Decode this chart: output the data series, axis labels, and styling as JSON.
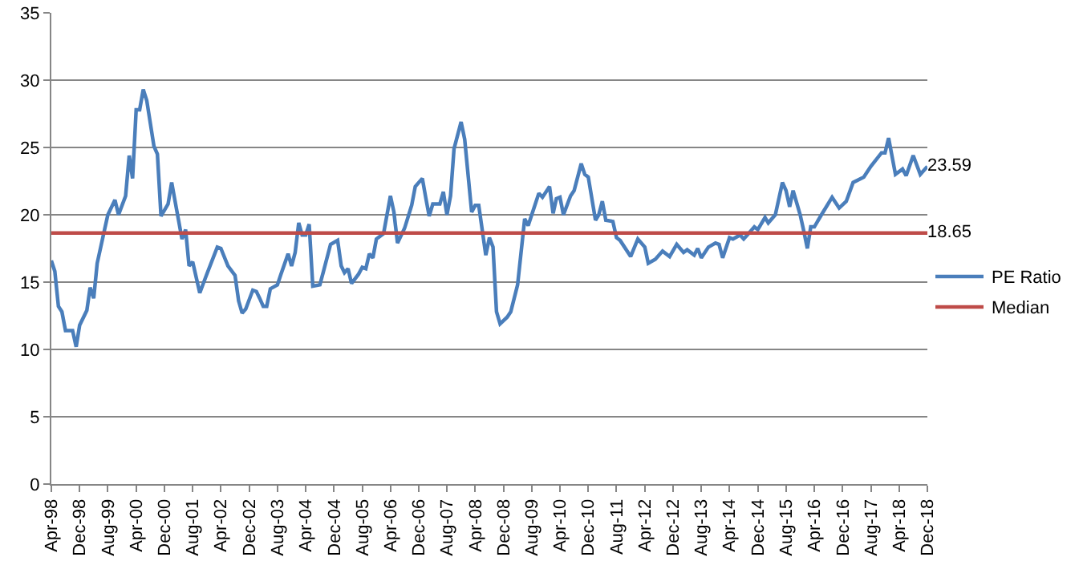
{
  "chart_data": {
    "type": "line",
    "xlim": [
      "1998-04",
      "2018-12"
    ],
    "ylim": [
      0,
      35
    ],
    "yticks": [
      0,
      5,
      10,
      15,
      20,
      25,
      30,
      35
    ],
    "xticks": [
      {
        "value": "1998-04",
        "label": "Apr-98"
      },
      {
        "value": "1998-12",
        "label": "Dec-98"
      },
      {
        "value": "1999-08",
        "label": "Aug-99"
      },
      {
        "value": "2000-04",
        "label": "Apr-00"
      },
      {
        "value": "2000-12",
        "label": "Dec-00"
      },
      {
        "value": "2001-08",
        "label": "Aug-01"
      },
      {
        "value": "2002-04",
        "label": "Apr-02"
      },
      {
        "value": "2002-12",
        "label": "Dec-02"
      },
      {
        "value": "2003-08",
        "label": "Aug-03"
      },
      {
        "value": "2004-04",
        "label": "Apr-04"
      },
      {
        "value": "2004-12",
        "label": "Dec-04"
      },
      {
        "value": "2005-08",
        "label": "Aug-05"
      },
      {
        "value": "2006-04",
        "label": "Apr-06"
      },
      {
        "value": "2006-12",
        "label": "Dec-06"
      },
      {
        "value": "2007-08",
        "label": "Aug-07"
      },
      {
        "value": "2008-04",
        "label": "Apr-08"
      },
      {
        "value": "2008-12",
        "label": "Dec-08"
      },
      {
        "value": "2009-08",
        "label": "Aug-09"
      },
      {
        "value": "2010-04",
        "label": "Apr-10"
      },
      {
        "value": "2010-12",
        "label": "Dec-10"
      },
      {
        "value": "2011-08",
        "label": "Aug-11"
      },
      {
        "value": "2012-04",
        "label": "Apr-12"
      },
      {
        "value": "2012-12",
        "label": "Dec-12"
      },
      {
        "value": "2013-08",
        "label": "Aug-13"
      },
      {
        "value": "2014-04",
        "label": "Apr-14"
      },
      {
        "value": "2014-12",
        "label": "Dec-14"
      },
      {
        "value": "2015-08",
        "label": "Aug-15"
      },
      {
        "value": "2016-04",
        "label": "Apr-16"
      },
      {
        "value": "2016-12",
        "label": "Dec-16"
      },
      {
        "value": "2017-08",
        "label": "Aug-17"
      },
      {
        "value": "2018-04",
        "label": "Apr-18"
      },
      {
        "value": "2018-12",
        "label": "Dec-18"
      }
    ],
    "grid": "y",
    "legend": "right",
    "marker": "none",
    "line_style": "solid",
    "series": [
      {
        "name": "PE Ratio",
        "color": "#4a7ebb",
        "x": [
          "1998-04",
          "1998-05",
          "1998-06",
          "1998-07",
          "1998-08",
          "1998-10",
          "1998-11",
          "1998-12",
          "1999-02",
          "1999-03",
          "1999-04",
          "1999-05",
          "1999-07",
          "1999-08",
          "1999-10",
          "1999-11",
          "2000-01",
          "2000-02",
          "2000-03",
          "2000-04",
          "2000-05",
          "2000-06",
          "2000-07",
          "2000-09",
          "2000-10",
          "2000-11",
          "2001-01",
          "2001-02",
          "2001-04",
          "2001-05",
          "2001-06",
          "2001-07",
          "2001-08",
          "2001-10",
          "2001-12",
          "2002-03",
          "2002-04",
          "2002-06",
          "2002-08",
          "2002-09",
          "2002-10",
          "2002-11",
          "2003-01",
          "2003-02",
          "2003-03",
          "2003-04",
          "2003-05",
          "2003-06",
          "2003-08",
          "2003-09",
          "2003-11",
          "2003-12",
          "2004-01",
          "2004-02",
          "2004-03",
          "2004-04",
          "2004-05",
          "2004-06",
          "2004-08",
          "2004-09",
          "2004-11",
          "2005-01",
          "2005-02",
          "2005-03",
          "2005-04",
          "2005-05",
          "2005-07",
          "2005-08",
          "2005-09",
          "2005-10",
          "2005-11",
          "2005-12",
          "2006-02",
          "2006-04",
          "2006-05",
          "2006-06",
          "2006-08",
          "2006-10",
          "2006-11",
          "2007-01",
          "2007-02",
          "2007-03",
          "2007-04",
          "2007-06",
          "2007-07",
          "2007-08",
          "2007-09",
          "2007-10",
          "2007-12",
          "2008-01",
          "2008-03",
          "2008-04",
          "2008-05",
          "2008-07",
          "2008-08",
          "2008-09",
          "2008-10",
          "2008-11",
          "2009-01",
          "2009-02",
          "2009-04",
          "2009-06",
          "2009-07",
          "2009-10",
          "2009-11",
          "2010-01",
          "2010-02",
          "2010-03",
          "2010-04",
          "2010-05",
          "2010-07",
          "2010-08",
          "2010-10",
          "2010-11",
          "2010-12",
          "2011-02",
          "2011-03",
          "2011-04",
          "2011-05",
          "2011-07",
          "2011-08",
          "2011-09",
          "2011-12",
          "2012-02",
          "2012-04",
          "2012-05",
          "2012-07",
          "2012-09",
          "2012-11",
          "2013-01",
          "2013-03",
          "2013-04",
          "2013-06",
          "2013-07",
          "2013-08",
          "2013-10",
          "2013-12",
          "2014-01",
          "2014-02",
          "2014-04",
          "2014-05",
          "2014-07",
          "2014-08",
          "2014-09",
          "2014-11",
          "2014-12",
          "2015-02",
          "2015-03",
          "2015-05",
          "2015-07",
          "2015-08",
          "2015-09",
          "2015-10",
          "2015-12",
          "2016-01",
          "2016-02",
          "2016-03",
          "2016-04",
          "2016-06",
          "2016-09",
          "2016-11",
          "2017-01",
          "2017-03",
          "2017-06",
          "2017-08",
          "2017-11",
          "2017-12",
          "2018-01",
          "2018-03",
          "2018-05",
          "2018-06",
          "2018-08",
          "2018-10",
          "2018-12"
        ],
        "values": [
          16.6,
          15.8,
          13.2,
          12.8,
          11.4,
          11.4,
          10.2,
          11.8,
          12.9,
          14.6,
          13.8,
          16.4,
          18.8,
          20.0,
          21.1,
          20.0,
          21.4,
          24.4,
          22.7,
          27.8,
          27.8,
          29.3,
          28.5,
          25.1,
          24.5,
          19.9,
          20.8,
          22.4,
          19.6,
          18.2,
          18.9,
          16.2,
          16.5,
          14.2,
          15.6,
          17.6,
          17.5,
          16.2,
          15.5,
          13.6,
          12.7,
          13.0,
          14.4,
          14.3,
          13.8,
          13.2,
          13.2,
          14.5,
          14.8,
          15.6,
          17.1,
          16.2,
          17.2,
          19.4,
          18.5,
          18.5,
          19.3,
          14.7,
          14.8,
          15.8,
          17.8,
          18.1,
          16.2,
          15.7,
          16.0,
          14.9,
          15.6,
          16.1,
          16.0,
          17.1,
          16.8,
          18.2,
          18.6,
          21.4,
          20.2,
          17.9,
          19.0,
          20.7,
          22.1,
          22.7,
          21.2,
          19.9,
          20.8,
          20.8,
          21.7,
          20.0,
          21.4,
          24.9,
          26.9,
          25.6,
          20.2,
          20.7,
          20.7,
          17.0,
          18.3,
          17.6,
          12.8,
          11.9,
          12.4,
          12.8,
          14.8,
          19.7,
          19.2,
          21.6,
          21.3,
          22.1,
          20.1,
          21.2,
          21.3,
          20.0,
          21.4,
          21.8,
          23.8,
          23.0,
          22.8,
          19.6,
          20.0,
          21.0,
          19.6,
          19.5,
          18.3,
          18.1,
          16.9,
          18.2,
          17.6,
          16.4,
          16.7,
          17.3,
          16.9,
          17.8,
          17.2,
          17.4,
          17.0,
          17.5,
          16.8,
          17.6,
          17.9,
          17.8,
          16.8,
          18.3,
          18.2,
          18.5,
          18.2,
          18.5,
          19.1,
          18.9,
          19.8,
          19.4,
          20.0,
          22.4,
          21.8,
          20.6,
          21.8,
          20.0,
          18.8,
          17.5,
          19.1,
          19.1,
          20.0,
          21.3,
          20.5,
          21.0,
          22.4,
          22.8,
          23.6,
          24.6,
          24.6,
          25.7,
          23.0,
          23.4,
          22.9,
          24.4,
          23.0,
          23.59
        ],
        "value_labels": [
          null,
          null,
          null,
          null,
          null,
          null,
          null,
          null,
          null,
          null,
          null,
          null,
          null,
          null,
          null,
          null,
          null,
          null,
          null,
          null,
          null,
          null,
          null,
          null,
          null,
          null,
          null,
          null,
          null,
          null,
          null,
          null,
          null,
          null,
          null,
          null,
          null,
          null,
          null,
          null,
          null,
          null,
          null,
          null,
          null,
          null,
          null,
          null,
          null,
          null,
          null,
          null,
          null,
          null,
          null,
          null,
          null,
          null,
          null,
          null,
          null,
          null,
          null,
          null,
          null,
          null,
          null,
          null,
          null,
          null,
          null,
          null,
          null,
          null,
          null,
          null,
          null,
          null,
          null,
          null,
          null,
          null,
          null,
          null,
          null,
          null,
          null,
          null,
          null,
          null,
          null,
          null,
          null,
          null,
          null,
          null,
          null,
          null,
          null,
          null,
          null,
          null,
          null,
          null,
          null,
          null,
          null,
          null,
          null,
          null,
          null,
          null,
          null,
          null,
          null,
          null,
          null,
          null,
          null,
          null,
          null,
          null,
          null,
          null,
          null,
          null,
          null,
          null,
          null,
          null,
          null,
          null,
          null,
          null,
          null,
          null,
          null,
          null,
          null,
          null,
          null,
          null,
          null,
          null,
          null,
          null,
          null,
          null,
          null,
          null,
          null,
          null,
          null,
          null,
          null,
          null,
          null,
          null,
          null,
          null,
          null,
          null,
          null,
          null,
          null,
          null,
          null,
          null,
          null,
          null,
          null,
          null,
          null,
          "23.59"
        ]
      },
      {
        "name": "Median",
        "color": "#be4b48",
        "x": [
          "1998-04",
          "2018-12"
        ],
        "values": [
          18.65,
          18.65
        ],
        "value_labels": [
          null,
          "18.65"
        ]
      }
    ]
  }
}
